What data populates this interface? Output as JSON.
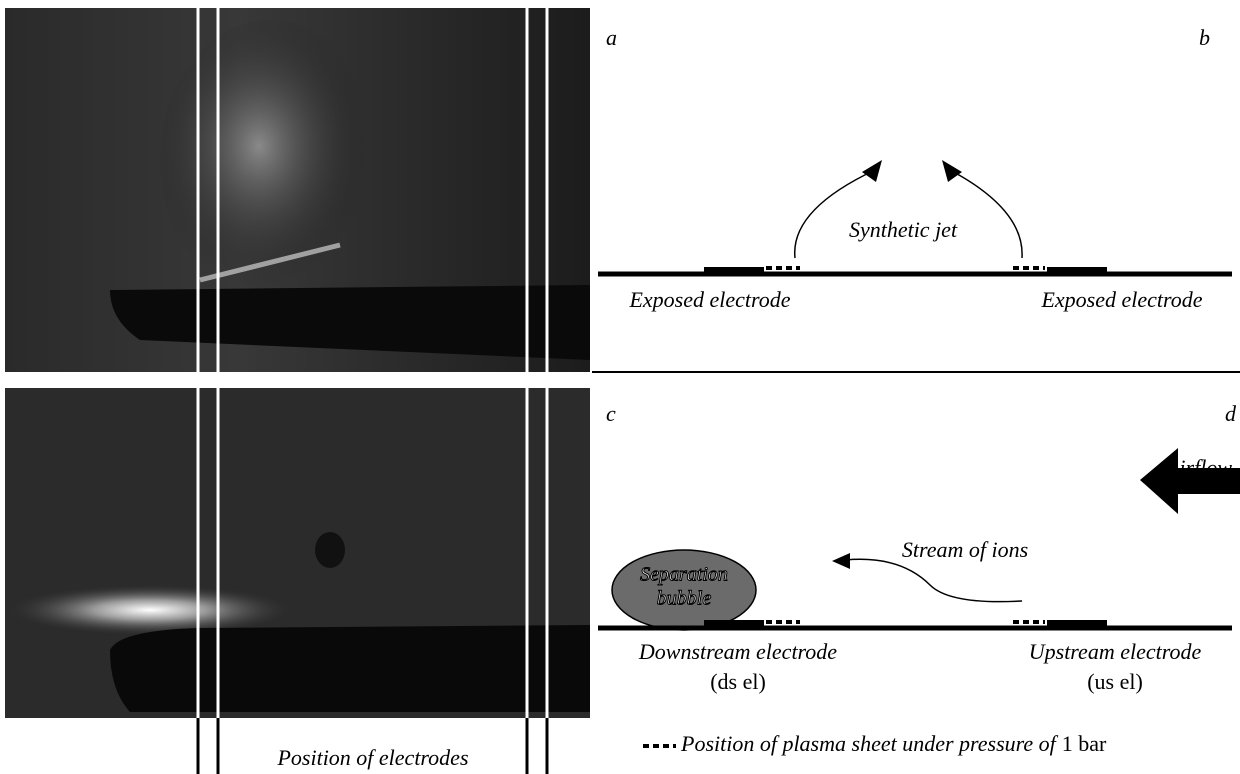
{
  "panels": {
    "a": "a",
    "b": "b",
    "c": "c",
    "d": "d"
  },
  "top": {
    "jet": "Synthetic jet",
    "left_electrode": "Exposed electrode",
    "right_electrode": "Exposed electrode"
  },
  "bottom": {
    "airflow": "Airflow",
    "ions": "Stream of ions",
    "bubble": [
      "Separation",
      "bubble"
    ],
    "downstream": [
      "Downstream electrode",
      "(ds el)"
    ],
    "upstream": [
      "Upstream electrode",
      "(us el)"
    ]
  },
  "photo_caption": "Position of electrodes",
  "legend": {
    "text": "Position of plasma sheet under pressure of",
    "value": "1 bar"
  }
}
